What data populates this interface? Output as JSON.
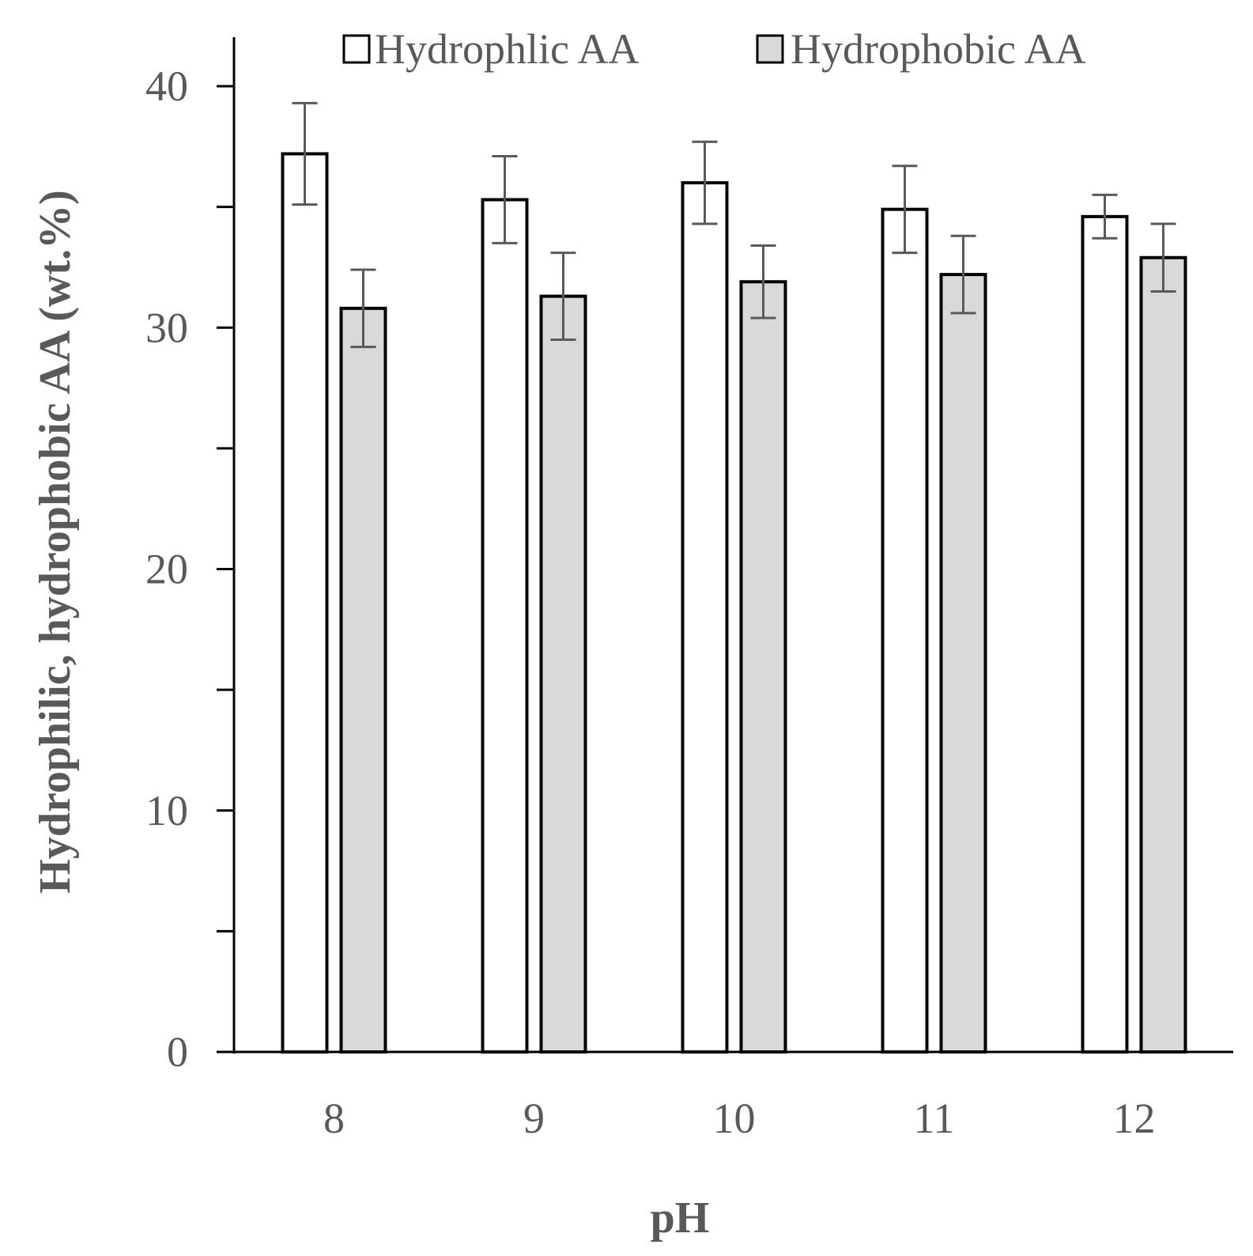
{
  "chart_data": {
    "type": "bar",
    "title": "",
    "xlabel": "pH",
    "ylabel": "Hydrophilic, hydrophobic AA (wt.%)",
    "categories": [
      "8",
      "9",
      "10",
      "11",
      "12"
    ],
    "ylim": [
      0,
      40
    ],
    "y_major_ticks": [
      "0",
      "10",
      "20",
      "30",
      "40"
    ],
    "y_minor_tick_step": 5,
    "grid": false,
    "legend_position": "top",
    "series": [
      {
        "name": "Hydrophlic AA",
        "fill": "#ffffff",
        "values": [
          37.2,
          35.3,
          36.0,
          34.9,
          34.6
        ],
        "errors": [
          2.1,
          1.8,
          1.7,
          1.8,
          0.9
        ]
      },
      {
        "name": "Hydrophobic AA",
        "fill": "#d9d9d9",
        "values": [
          30.8,
          31.3,
          31.9,
          32.2,
          32.9
        ],
        "errors": [
          1.6,
          1.8,
          1.5,
          1.6,
          1.4
        ]
      }
    ],
    "colors": {
      "axis": "#000000",
      "bar_edge": "#000000",
      "error_bar": "#595959",
      "text": "#595959"
    }
  }
}
